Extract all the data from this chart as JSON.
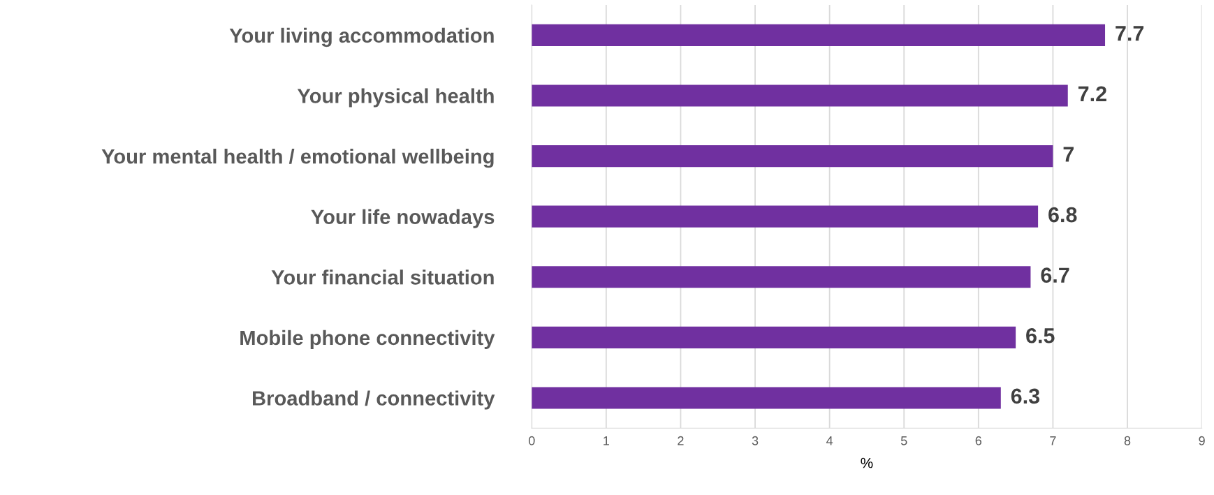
{
  "chart_data": {
    "type": "bar",
    "orientation": "horizontal",
    "xlabel": "%",
    "categories": [
      "Your living accommodation",
      "Your physical health",
      "Your mental health / emotional wellbeing",
      "Your life nowadays",
      "Your financial situation",
      "Mobile phone connectivity",
      "Broadband / connectivity"
    ],
    "values": [
      7.7,
      7.2,
      7,
      6.8,
      6.7,
      6.5,
      6.3
    ],
    "color": "#7030a0",
    "xlim": [
      0,
      9
    ],
    "xticks": [
      0,
      1,
      2,
      3,
      4,
      5,
      6,
      7,
      8,
      9
    ],
    "grid": "x",
    "data_labels": true
  }
}
